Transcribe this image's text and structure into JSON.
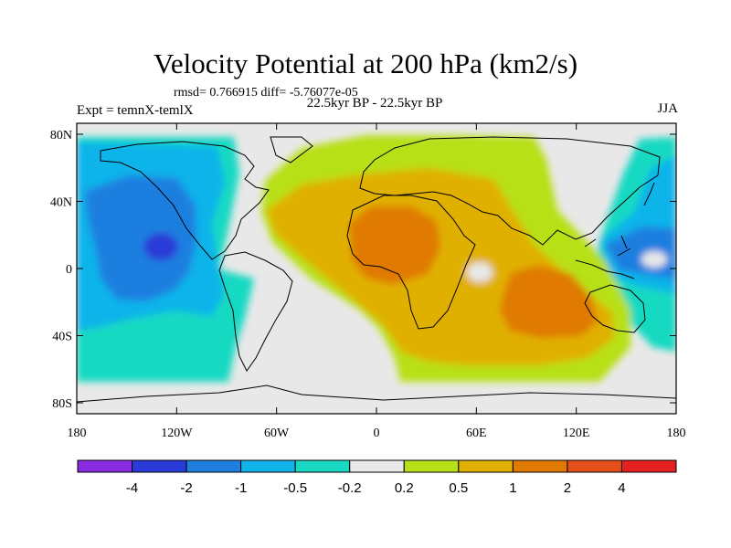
{
  "title": "Velocity Potential at 200 hPa (km2/s)",
  "stats": "rmsd= 0.766915 diff= -5.76077e-05",
  "period": "22.5kyr BP - 22.5kyr BP",
  "experiment": "Expt = temnX-temlX",
  "season": "JJA",
  "map": {
    "projection": "equirectangular",
    "lon_range": [
      -180,
      180
    ],
    "lat_range": [
      -90,
      90
    ],
    "lat_ticks": [
      {
        "value": 80,
        "label": "80N"
      },
      {
        "value": 40,
        "label": "40N"
      },
      {
        "value": 0,
        "label": "0"
      },
      {
        "value": -40,
        "label": "40S"
      },
      {
        "value": -80,
        "label": "80S"
      }
    ],
    "lon_ticks": [
      {
        "value": -180,
        "label": "180"
      },
      {
        "value": -120,
        "label": "120W"
      },
      {
        "value": -60,
        "label": "60W"
      },
      {
        "value": 0,
        "label": "0"
      },
      {
        "value": 60,
        "label": "60E"
      },
      {
        "value": 120,
        "label": "120E"
      },
      {
        "value": 180,
        "label": "180"
      }
    ],
    "background_color": "#e8e8e8"
  },
  "colorbar": {
    "colors": [
      "#8a2be2",
      "#2a3ad8",
      "#1e7fe0",
      "#11b4ea",
      "#19d9c2",
      "#e8e8e8",
      "#b8e018",
      "#e0b000",
      "#e07a00",
      "#e5501a",
      "#e52020"
    ],
    "labels": [
      "-4",
      "-2",
      "-1",
      "-0.5",
      "-0.2",
      "0.2",
      "0.5",
      "1",
      "2",
      "4"
    ]
  }
}
